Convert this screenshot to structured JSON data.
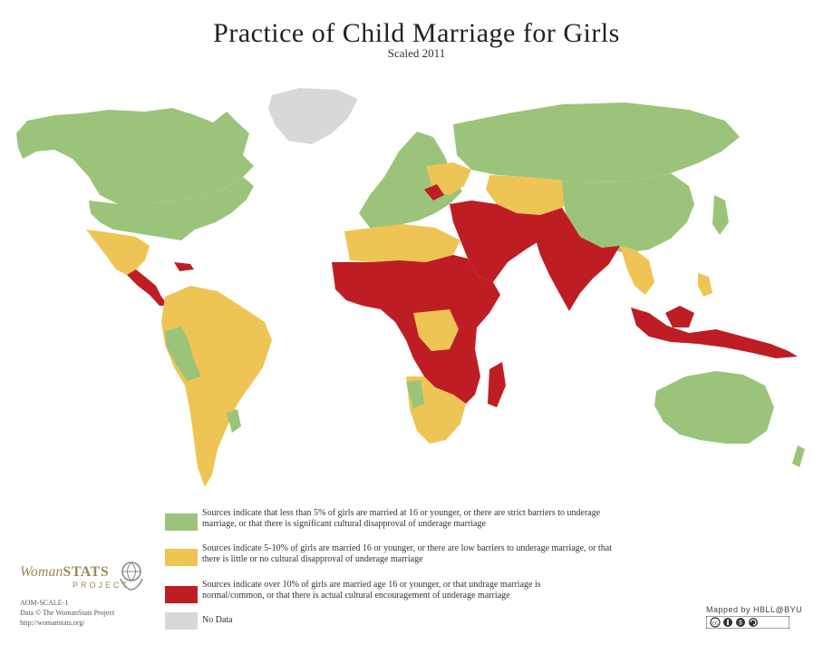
{
  "title": "Practice of Child Marriage for Girls",
  "subtitle": "Scaled 2011",
  "colors": {
    "green": "#9bc47a",
    "yellow": "#eec554",
    "red": "#bf1d24",
    "gray": "#d8d8d8",
    "ocean": "#ffffff"
  },
  "legend": [
    {
      "color": "#9bc47a",
      "line1": "Sources indicate that less than 5% of girls are married at 16 or younger, or there are strict barriers to underage",
      "line2": "marriage, or that there is significant cultural disapproval of underage marriage"
    },
    {
      "color": "#eec554",
      "line1": "Sources indicate 5-10% of girls are married 16 or younger, or there are low barriers to underage marriage, or that",
      "line2": "there is little or no cultural disapproval of underage marriage"
    },
    {
      "color": "#bf1d24",
      "line1": "Sources indicate over 10% of girls are married age 16 or younger, or that undrage marriage is",
      "line2": "normal/common, or that there is actual cultural encouragement of underage marriage"
    },
    {
      "color": "#d8d8d8",
      "line1": "No Data",
      "line2": ""
    }
  ],
  "brand": {
    "name_prefix": "Woman",
    "name_suffix": "STATS",
    "project": "PROJECT",
    "scale_code": "AOM-SCALE-1",
    "credit": "Data © The WomanStats Project",
    "url": "http://womanstats.org/"
  },
  "mapped_by": "Mapped by HBLL@BYU",
  "license_icons": [
    "cc-icon",
    "by-icon",
    "nc-icon",
    "sa-icon"
  ]
}
